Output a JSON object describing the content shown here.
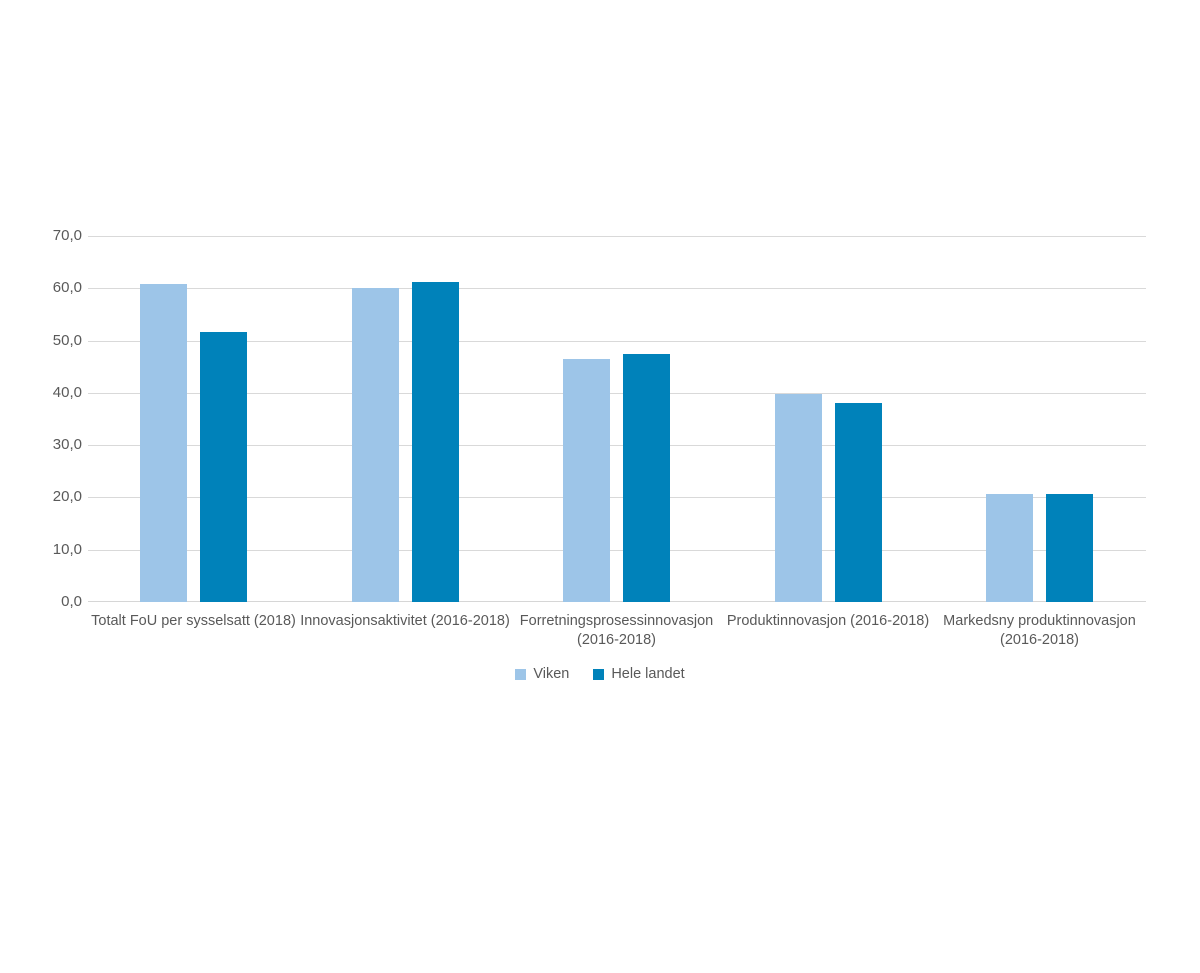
{
  "chart_data": {
    "type": "bar",
    "title": "",
    "xlabel": "",
    "ylabel": "",
    "categories": [
      "Totalt FoU per sysselsatt (2018)",
      "Innovasjonsaktivitet (2016-2018)",
      "Forretningsprosessinnovasjon (2016-2018)",
      "Produktinnovasjon (2016-2018)",
      "Markedsny produktinnovasjon (2016-2018)"
    ],
    "series": [
      {
        "name": "Viken",
        "color": "#9DC5E8",
        "values": [
          60.8,
          60.0,
          46.4,
          39.8,
          20.7
        ]
      },
      {
        "name": "Hele landet",
        "color": "#0082BA",
        "values": [
          51.7,
          61.2,
          47.4,
          38.1,
          20.6
        ]
      }
    ],
    "ylim": [
      0,
      70
    ],
    "ytick_step": 10,
    "ytick_labels": [
      "0,0",
      "10,0",
      "20,0",
      "30,0",
      "40,0",
      "50,0",
      "60,0",
      "70,0"
    ],
    "grid": true,
    "legend_position": "bottom",
    "colors": {
      "gridline": "#D9D9D9",
      "axis_line": "#D6D6D6",
      "text": "#595959",
      "background": "#FFFFFF"
    }
  }
}
